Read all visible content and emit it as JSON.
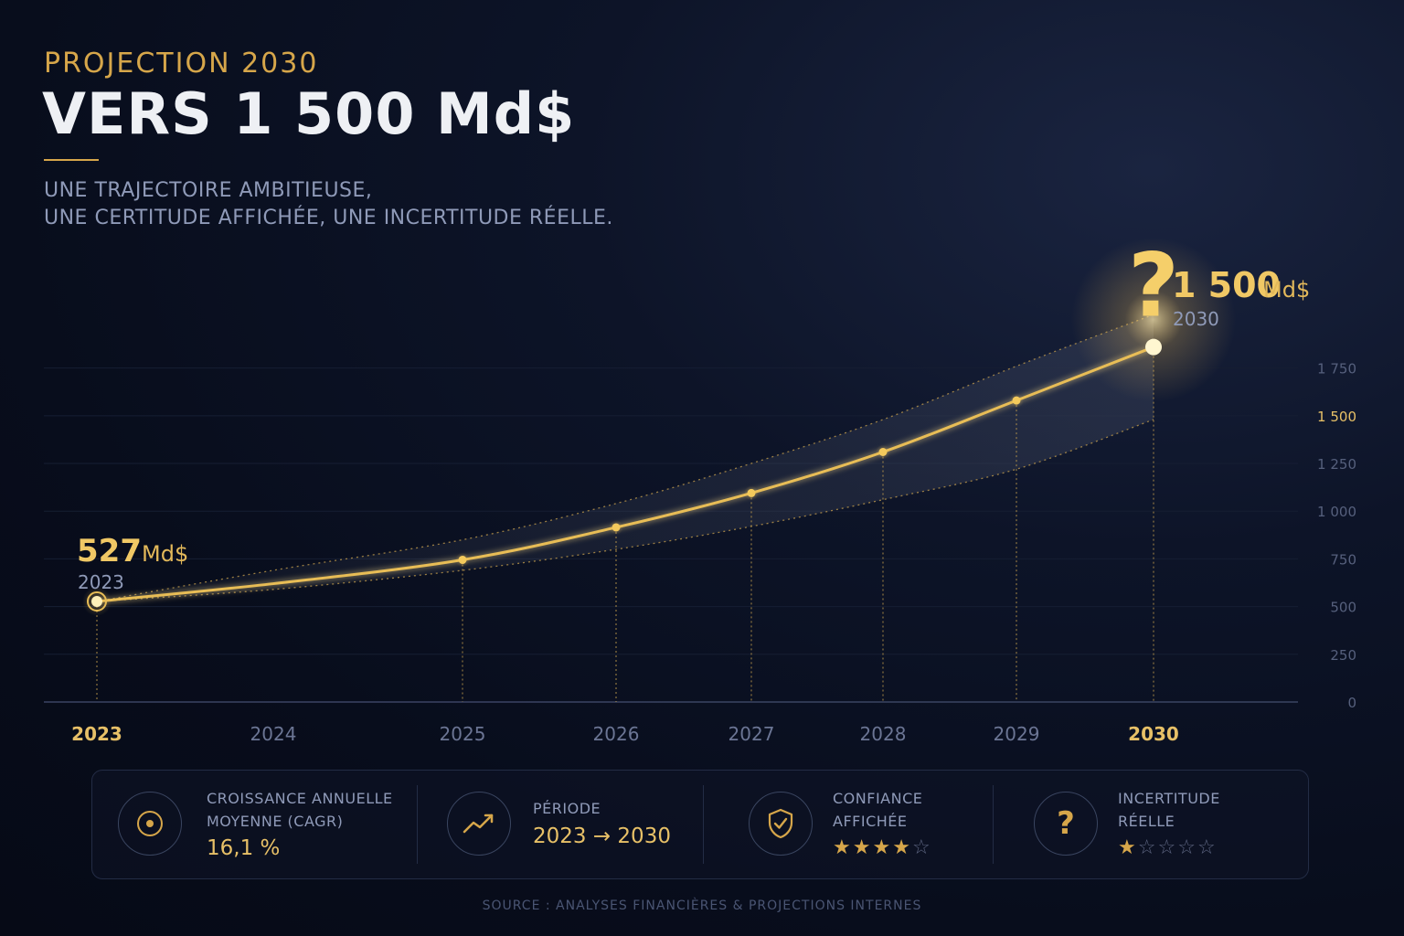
{
  "header": {
    "eyebrow": "PROJECTION 2030",
    "title": "VERS 1 500 Md$",
    "subtitle_line1": "UNE TRAJECTOIRE AMBITIEUSE,",
    "subtitle_line2": "UNE CERTITUDE AFFICHÉE, UNE INCERTITUDE RÉELLE."
  },
  "colors": {
    "accent": "#e8bd56",
    "glow": "#ffe08a",
    "background": "#080d1c",
    "muted": "#8f9ab8"
  },
  "chart_data": {
    "type": "line",
    "x": [
      "2023",
      "2024",
      "2025",
      "2026",
      "2027",
      "2028",
      "2029",
      "2030"
    ],
    "series": [
      {
        "values": [
          527,
          620,
          745,
          915,
          1095,
          1310,
          1580,
          1500
        ]
      }
    ],
    "markers_x": [
      "2023",
      "2025",
      "2026",
      "2027",
      "2028",
      "2029",
      "2030"
    ],
    "band_upper": [
      527,
      690,
      850,
      1040,
      1250,
      1480,
      1760,
      2030
    ],
    "band_lower": [
      527,
      590,
      690,
      800,
      920,
      1060,
      1220,
      1480
    ],
    "yticks": [
      0,
      250,
      500,
      750,
      1000,
      1250,
      1500,
      1750
    ],
    "ytick_labels": [
      "0",
      "250",
      "500",
      "750",
      "1 000",
      "1 250",
      "1 500",
      "1 750"
    ],
    "highlight_ytick": "1 500",
    "ylim": [
      0,
      2050
    ],
    "grid": true,
    "start_label": {
      "value": "527",
      "unit": "Md$",
      "year": "2023"
    },
    "end_label": {
      "value": "1 500",
      "unit": "Md$",
      "year": "2030"
    },
    "end_symbol": "?"
  },
  "stats": [
    {
      "label_line1": "CROISSANCE ANNUELLE",
      "label_line2": "MOYENNE (CAGR)",
      "value": "16,1 %",
      "icon": "target-icon"
    },
    {
      "label_line1": "PÉRIODE",
      "value": "2023 → 2030",
      "icon": "trend-up-icon"
    },
    {
      "label_line1": "CONFIANCE",
      "label_line2": "AFFICHÉE",
      "rating": 4,
      "rating_max": 5,
      "icon": "shield-check-icon"
    },
    {
      "label_line1": "INCERTITUDE",
      "label_line2": "RÉELLE",
      "rating": 1,
      "rating_max": 5,
      "icon": "question-icon",
      "icon_glyph": "?"
    }
  ],
  "source": "SOURCE : ANALYSES FINANCIÈRES & PROJECTIONS INTERNES"
}
